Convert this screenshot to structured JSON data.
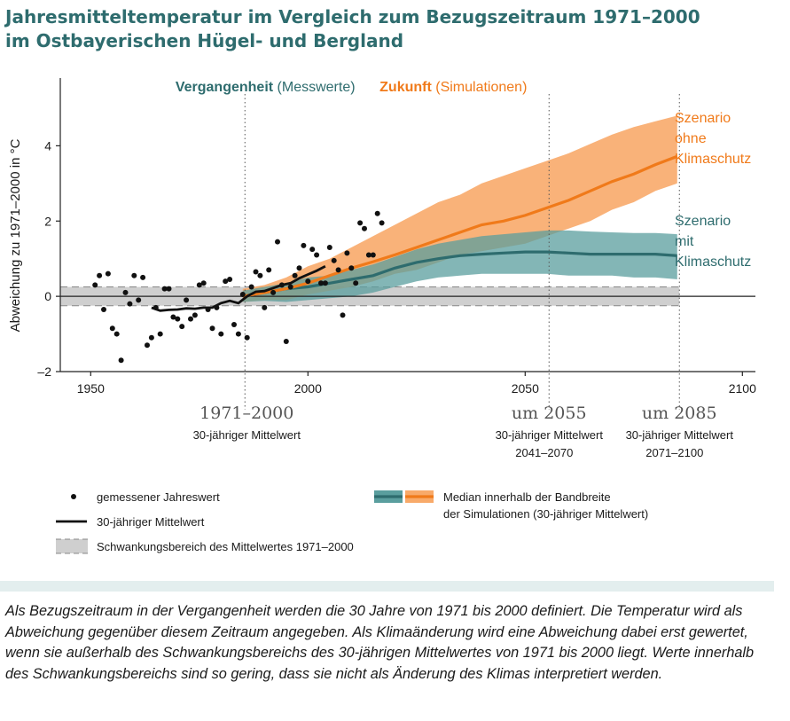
{
  "title": {
    "line1": "Jahresmitteltemperatur im Vergleich zum Bezugszeitraum 1971–2000",
    "line2": "im Ostbayerischen Hügel- und Bergland"
  },
  "colors": {
    "teal": "#2e6c6e",
    "teal_band": "#5a9e9e",
    "orange": "#f07a1a",
    "orange_band": "#f8aa6a",
    "gray_band": "#cfcfcf"
  },
  "chart_data": {
    "type": "line",
    "xlim": [
      1943,
      2103
    ],
    "ylim": [
      -2,
      5.8
    ],
    "ylabel": "Abweichung zu 1971–2000 in °C",
    "x_ticks": [
      1950,
      2000,
      2050,
      2100
    ],
    "y_ticks": [
      -2,
      0,
      2,
      4
    ],
    "y_tick_labels": [
      "–2",
      "0",
      "2",
      "4"
    ],
    "reference_band": [
      -0.25,
      0.25
    ],
    "section_labels": {
      "past_bold": "Vergangenheit",
      "past_normal": " (Messwerte)",
      "future_bold": "Zukunft",
      "future_normal": " (Simulationen)"
    },
    "markers": [
      {
        "x": 1985.5,
        "label_big": "1971–2000",
        "label_sub1": "30-jähriger Mittelwert",
        "label_sub2": ""
      },
      {
        "x": 2055.5,
        "label_big": "um 2055",
        "label_sub1": "30-jähriger Mittelwert",
        "label_sub2": "2041–2070"
      },
      {
        "x": 2085.5,
        "label_big": "um 2085",
        "label_sub1": "30-jähriger Mittelwert",
        "label_sub2": "2071–2100"
      }
    ],
    "observations": {
      "name": "gemessener Jahreswert",
      "points": [
        [
          1951,
          0.3
        ],
        [
          1952,
          0.55
        ],
        [
          1953,
          -0.35
        ],
        [
          1954,
          0.6
        ],
        [
          1955,
          -0.85
        ],
        [
          1956,
          -1.0
        ],
        [
          1957,
          -1.7
        ],
        [
          1958,
          0.1
        ],
        [
          1959,
          -0.2
        ],
        [
          1960,
          0.55
        ],
        [
          1961,
          -0.1
        ],
        [
          1962,
          0.5
        ],
        [
          1963,
          -1.3
        ],
        [
          1964,
          -1.1
        ],
        [
          1965,
          -0.3
        ],
        [
          1966,
          -1.0
        ],
        [
          1967,
          0.2
        ],
        [
          1968,
          0.2
        ],
        [
          1969,
          -0.55
        ],
        [
          1970,
          -0.6
        ],
        [
          1971,
          -0.8
        ],
        [
          1972,
          -0.1
        ],
        [
          1973,
          -0.6
        ],
        [
          1974,
          -0.5
        ],
        [
          1975,
          0.3
        ],
        [
          1976,
          0.35
        ],
        [
          1977,
          -0.35
        ],
        [
          1978,
          -0.85
        ],
        [
          1979,
          -0.3
        ],
        [
          1980,
          -1.0
        ],
        [
          1981,
          0.4
        ],
        [
          1982,
          0.45
        ],
        [
          1983,
          -0.75
        ],
        [
          1984,
          -1.0
        ],
        [
          1985,
          0.05
        ],
        [
          1986,
          -1.1
        ],
        [
          1987,
          0.25
        ],
        [
          1988,
          0.65
        ],
        [
          1989,
          0.55
        ],
        [
          1990,
          -0.3
        ],
        [
          1991,
          0.7
        ],
        [
          1992,
          0.1
        ],
        [
          1993,
          1.45
        ],
        [
          1994,
          0.3
        ],
        [
          1995,
          -1.2
        ],
        [
          1996,
          0.25
        ],
        [
          1997,
          0.55
        ],
        [
          1998,
          0.75
        ],
        [
          1999,
          1.35
        ],
        [
          2000,
          0.4
        ],
        [
          2001,
          1.25
        ],
        [
          2002,
          1.1
        ],
        [
          2003,
          0.35
        ],
        [
          2004,
          0.35
        ],
        [
          2005,
          1.3
        ],
        [
          2006,
          0.95
        ],
        [
          2007,
          0.7
        ],
        [
          2008,
          -0.5
        ],
        [
          2009,
          1.15
        ],
        [
          2010,
          0.75
        ],
        [
          2011,
          0.35
        ],
        [
          2012,
          1.95
        ],
        [
          2013,
          1.8
        ],
        [
          2014,
          1.1
        ],
        [
          2015,
          1.1
        ],
        [
          2016,
          2.2
        ],
        [
          2017,
          1.95
        ]
      ]
    },
    "obs_mean": {
      "name": "30-jähriger Mittelwert",
      "x": [
        1964,
        1966,
        1968,
        1970,
        1972,
        1974,
        1976,
        1978,
        1980,
        1982,
        1984,
        1986,
        1988,
        1990,
        1992,
        1994,
        1996,
        1998,
        2000,
        2002,
        2004
      ],
      "y": [
        -0.3,
        -0.38,
        -0.36,
        -0.35,
        -0.32,
        -0.33,
        -0.3,
        -0.3,
        -0.18,
        -0.12,
        -0.18,
        0.0,
        0.12,
        0.14,
        0.22,
        0.3,
        0.35,
        0.48,
        0.58,
        0.68,
        0.8
      ]
    },
    "scenarios": [
      {
        "name": "Szenario ohne Klimaschutz",
        "label_lines": [
          "Szenario",
          "ohne",
          "Klimaschutz"
        ],
        "x": [
          1985,
          1990,
          1995,
          2000,
          2005,
          2010,
          2015,
          2020,
          2025,
          2030,
          2035,
          2040,
          2045,
          2050,
          2055,
          2060,
          2065,
          2070,
          2075,
          2080,
          2085
        ],
        "median": [
          0.0,
          0.1,
          0.2,
          0.35,
          0.55,
          0.75,
          0.92,
          1.1,
          1.3,
          1.5,
          1.7,
          1.9,
          2.0,
          2.15,
          2.35,
          2.55,
          2.8,
          3.05,
          3.25,
          3.5,
          3.72
        ],
        "lower": [
          -0.15,
          -0.1,
          -0.1,
          0.05,
          0.15,
          0.25,
          0.4,
          0.6,
          0.7,
          0.9,
          1.1,
          1.2,
          1.3,
          1.4,
          1.6,
          1.8,
          2.0,
          2.3,
          2.5,
          2.8,
          3.0
        ],
        "upper": [
          0.2,
          0.3,
          0.5,
          0.8,
          1.0,
          1.3,
          1.6,
          1.9,
          2.2,
          2.5,
          2.7,
          3.0,
          3.2,
          3.4,
          3.6,
          3.8,
          4.05,
          4.3,
          4.5,
          4.65,
          4.8
        ]
      },
      {
        "name": "Szenario mit Klimaschutz",
        "label_lines": [
          "Szenario",
          "mit",
          "Klimaschutz"
        ],
        "x": [
          1985,
          1990,
          1995,
          2000,
          2005,
          2010,
          2015,
          2020,
          2025,
          2030,
          2035,
          2040,
          2045,
          2050,
          2055,
          2060,
          2065,
          2070,
          2075,
          2080,
          2085
        ],
        "median": [
          0.0,
          0.1,
          0.2,
          0.25,
          0.35,
          0.45,
          0.55,
          0.75,
          0.9,
          1.0,
          1.08,
          1.12,
          1.15,
          1.18,
          1.18,
          1.15,
          1.12,
          1.12,
          1.12,
          1.12,
          1.08
        ],
        "lower": [
          -0.15,
          -0.12,
          -0.15,
          -0.1,
          -0.05,
          0.0,
          0.1,
          0.25,
          0.4,
          0.5,
          0.55,
          0.6,
          0.6,
          0.6,
          0.6,
          0.55,
          0.55,
          0.55,
          0.5,
          0.5,
          0.45
        ],
        "upper": [
          0.15,
          0.25,
          0.35,
          0.5,
          0.55,
          0.7,
          0.85,
          1.05,
          1.25,
          1.4,
          1.5,
          1.6,
          1.65,
          1.7,
          1.75,
          1.75,
          1.72,
          1.7,
          1.68,
          1.68,
          1.65
        ]
      }
    ],
    "legend": {
      "dot": "gemessener Jahreswert",
      "line": "30-jähriger Mittelwert",
      "band": "Schwankungsbereich des Mittelwertes 1971–2000",
      "sim_line1": "Median innerhalb der Bandbreite",
      "sim_line2": "der Simulationen (30-jähriger Mittelwert)"
    }
  },
  "caption": "Als Bezugszeitraum in der Vergangenheit werden die 30 Jahre von 1971 bis 2000 definiert. Die Temperatur wird als Abweichung gegenüber diesem Zeitraum angegeben. Als Klimaänderung wird eine Abweichung dabei erst gewertet, wenn sie außerhalb des Schwankungsbereichs des 30-jährigen Mittelwertes von 1971 bis 2000 liegt. Werte innerhalb des Schwankungsbereichs sind so gering, dass sie nicht als Änderung des Klimas interpretiert werden."
}
